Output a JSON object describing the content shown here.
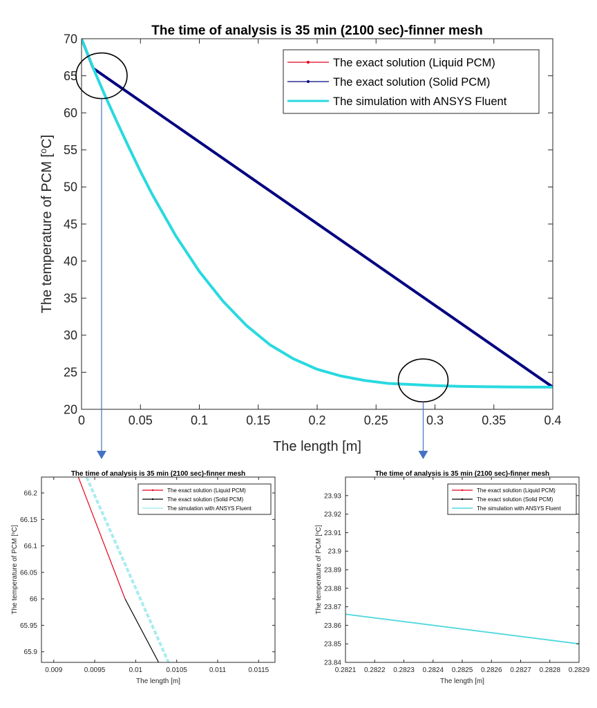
{
  "chart_data": [
    {
      "type": "line",
      "title": "The time of analysis is 35 min (2100 sec)-finner mesh",
      "xlabel": "The length [m]",
      "ylabel": "The temperature of PCM [",
      "ylabel_sup": "o",
      "ylabel_unit": "C]",
      "xlim": [
        0,
        0.4
      ],
      "ylim": [
        20,
        70
      ],
      "xticks": [
        "0",
        "0.05",
        "0.1",
        "0.15",
        "0.2",
        "0.25",
        "0.3",
        "0.35",
        "0.4"
      ],
      "yticks": [
        "20",
        "25",
        "30",
        "35",
        "40",
        "45",
        "50",
        "55",
        "60",
        "65",
        "70"
      ],
      "grid": false,
      "legend_position": "top-right",
      "series": [
        {
          "name": "The exact solution (Liquid PCM)",
          "color": "#e3001b",
          "x": [
            0,
            0.0099
          ],
          "y": [
            70,
            66.0
          ]
        },
        {
          "name": "The exact solution (Solid PCM)",
          "color": "#000080",
          "x": [
            0.0099,
            0.4
          ],
          "y": [
            66.0,
            23.0
          ]
        },
        {
          "name": "The simulation with ANSYS Fluent",
          "color": "#29d9e0",
          "x": [
            0,
            0.01,
            0.02,
            0.03,
            0.04,
            0.05,
            0.06,
            0.08,
            0.1,
            0.12,
            0.14,
            0.16,
            0.18,
            0.2,
            0.22,
            0.24,
            0.26,
            0.28,
            0.3,
            0.32,
            0.34,
            0.36,
            0.38,
            0.4
          ],
          "y": [
            70,
            66.0,
            62.3,
            58.8,
            55.4,
            52.1,
            49.0,
            43.4,
            38.6,
            34.6,
            31.3,
            28.7,
            26.8,
            25.4,
            24.5,
            23.9,
            23.5,
            23.35,
            23.2,
            23.1,
            23.05,
            23.02,
            23.0,
            23.0
          ]
        }
      ],
      "annotations": [
        "zoom-circle at x≈0.017, y≈65",
        "zoom-circle at x≈0.29, y≈23.9"
      ]
    },
    {
      "type": "line",
      "title": "The time of analysis is 35 min (2100 sec)-finner mesh",
      "xlabel": "The length [m]",
      "ylabel": "The temperature of PCM [",
      "ylabel_sup": "o",
      "ylabel_unit": "C]",
      "xlim": [
        0.00885,
        0.0117
      ],
      "ylim": [
        65.88,
        66.23
      ],
      "xticks": [
        {
          "v": 0.009,
          "t": "0.009"
        },
        {
          "v": 0.0095,
          "t": "0.0095"
        },
        {
          "v": 0.01,
          "t": "0.01"
        },
        {
          "v": 0.0105,
          "t": "0.0105"
        },
        {
          "v": 0.011,
          "t": "0.011"
        },
        {
          "v": 0.0115,
          "t": "0.0115"
        }
      ],
      "yticks": [
        {
          "v": 65.9,
          "t": "65.9"
        },
        {
          "v": 65.95,
          "t": "65.95"
        },
        {
          "v": 66.0,
          "t": "66"
        },
        {
          "v": 66.05,
          "t": "66.05"
        },
        {
          "v": 66.1,
          "t": "66.1"
        },
        {
          "v": 66.15,
          "t": "66.15"
        },
        {
          "v": 66.2,
          "t": "66.2"
        }
      ],
      "grid": false,
      "legend_position": "top-right",
      "series": [
        {
          "name": "The exact solution (Liquid PCM)",
          "color": "#e3001b",
          "x": [
            0.0093,
            0.00987
          ],
          "y": [
            66.23,
            66.0
          ]
        },
        {
          "name": "The exact solution (Solid PCM)",
          "color": "#000000",
          "x": [
            0.00987,
            0.01028
          ],
          "y": [
            66.0,
            65.88
          ]
        },
        {
          "name": "The simulation with ANSYS Fluent",
          "color": "#a8ecef",
          "x": [
            0.0094,
            0.0104
          ],
          "y": [
            66.23,
            65.88
          ]
        }
      ]
    },
    {
      "type": "line",
      "title": "The time of analysis is 35 min (2100 sec)-finner mesh",
      "xlabel": "The length [m]",
      "ylabel": "The temperature of PCM [",
      "ylabel_sup": "o",
      "ylabel_unit": "C]",
      "xlim": [
        0.2821,
        0.2829
      ],
      "ylim": [
        23.84,
        23.94
      ],
      "xticks": [
        {
          "v": 0.2821,
          "t": "0.2821"
        },
        {
          "v": 0.2822,
          "t": "0.2822"
        },
        {
          "v": 0.2823,
          "t": "0.2823"
        },
        {
          "v": 0.2824,
          "t": "0.2824"
        },
        {
          "v": 0.2825,
          "t": "0.2825"
        },
        {
          "v": 0.2826,
          "t": "0.2826"
        },
        {
          "v": 0.2827,
          "t": "0.2827"
        },
        {
          "v": 0.2828,
          "t": "0.2828"
        },
        {
          "v": 0.2829,
          "t": "0.2829"
        }
      ],
      "yticks": [
        {
          "v": 23.84,
          "t": "23.84"
        },
        {
          "v": 23.85,
          "t": "23.85"
        },
        {
          "v": 23.86,
          "t": "23.86"
        },
        {
          "v": 23.87,
          "t": "23.87"
        },
        {
          "v": 23.88,
          "t": "23.88"
        },
        {
          "v": 23.89,
          "t": "23.89"
        },
        {
          "v": 23.9,
          "t": "23.9"
        },
        {
          "v": 23.91,
          "t": "23.91"
        },
        {
          "v": 23.92,
          "t": "23.92"
        },
        {
          "v": 23.93,
          "t": "23.93"
        }
      ],
      "grid": false,
      "legend_position": "top-right",
      "series": [
        {
          "name": "The exact solution (Liquid PCM)",
          "color": "#e3001b",
          "x": [
            0.2821,
            0.2829
          ],
          "y": [
            23.866,
            23.85
          ]
        },
        {
          "name": "The exact solution (Solid PCM)",
          "color": "#000000",
          "x": [
            0.2821,
            0.2829
          ],
          "y": [
            23.866,
            23.85
          ]
        },
        {
          "name": "The simulation with ANSYS Fluent",
          "color": "#4fd8dd",
          "x": [
            0.2821,
            0.2829
          ],
          "y": [
            23.866,
            23.85
          ]
        }
      ]
    }
  ]
}
